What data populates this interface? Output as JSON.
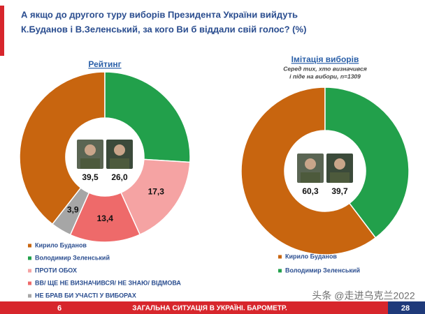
{
  "header": {
    "title_lines": [
      "А якщо до другого туру виборів Президента України вийдуть",
      "К.Буданов і В.Зеленський, за кого Ви б віддали свій голос? (%)"
    ]
  },
  "chart_data": [
    {
      "type": "donut",
      "title": "Рейтинг",
      "categories": [
        "Кирило Буданов",
        "Володимир Зеленський",
        "ПРОТИ ОБОХ",
        "ВВ/ ЩЕ НЕ ВИЗНАЧИВСЯ/ НЕ ЗНАЮ/ ВІДМОВА",
        "НЕ БРАВ БИ УЧАСТІ У ВИБОРАХ"
      ],
      "values": [
        39.5,
        26.0,
        17.3,
        13.4,
        3.9
      ],
      "value_labels": [
        "39,5",
        "26,0",
        "17,3",
        "13,4",
        "3,9"
      ],
      "colors": [
        "#c8650f",
        "#22a04b",
        "#f5a3a3",
        "#ee6a6a",
        "#a6a6a6"
      ]
    },
    {
      "type": "donut",
      "title": "Імітація виборів",
      "subtitle": [
        "Серед тих, хто визначився",
        "і піде на вибори, n=1309"
      ],
      "categories": [
        "Кирило Буданов",
        "Володимир Зеленський"
      ],
      "values": [
        60.3,
        39.7
      ],
      "value_labels": [
        "60,3",
        "39,7"
      ],
      "colors": [
        "#c8650f",
        "#22a04b"
      ]
    }
  ],
  "footer": {
    "left": "6",
    "center": "ЗАГАЛЬНА СИТУАЦІЯ В УКРАЇНІ. БАРОМЕТР.",
    "right": "28",
    "watermark": "头条 @走进乌克兰2022"
  }
}
